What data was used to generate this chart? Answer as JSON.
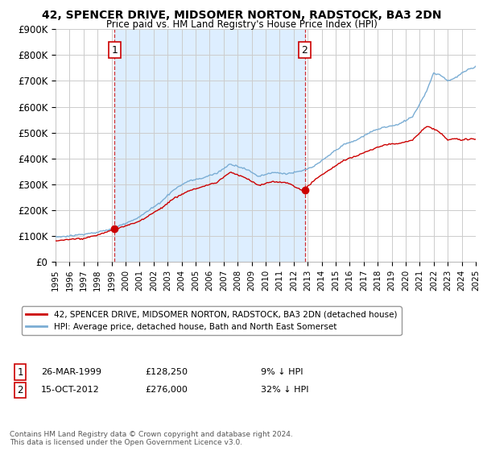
{
  "title": "42, SPENCER DRIVE, MIDSOMER NORTON, RADSTOCK, BA3 2DN",
  "subtitle": "Price paid vs. HM Land Registry's House Price Index (HPI)",
  "ylim": [
    0,
    900000
  ],
  "yticks": [
    0,
    100000,
    200000,
    300000,
    400000,
    500000,
    600000,
    700000,
    800000,
    900000
  ],
  "ytick_labels": [
    "£0",
    "£100K",
    "£200K",
    "£300K",
    "£400K",
    "£500K",
    "£600K",
    "£700K",
    "£800K",
    "£900K"
  ],
  "sale1_date": "26-MAR-1999",
  "sale1_price": 128250,
  "sale1_label": "£128,250",
  "sale1_pct": "9% ↓ HPI",
  "sale2_date": "15-OCT-2012",
  "sale2_price": 276000,
  "sale2_label": "£276,000",
  "sale2_pct": "32% ↓ HPI",
  "property_label": "42, SPENCER DRIVE, MIDSOMER NORTON, RADSTOCK, BA3 2DN (detached house)",
  "hpi_label": "HPI: Average price, detached house, Bath and North East Somerset",
  "property_color": "#cc0000",
  "hpi_color": "#7aadd4",
  "shade_color": "#ddeeff",
  "vline_color": "#cc0000",
  "grid_color": "#cccccc",
  "bg_color": "#ffffff",
  "footnote": "Contains HM Land Registry data © Crown copyright and database right 2024.\nThis data is licensed under the Open Government Licence v3.0.",
  "sale1_year_float": 1999.21,
  "sale2_year_float": 2012.79,
  "xstart": 1995.5,
  "xend": 2025.0
}
